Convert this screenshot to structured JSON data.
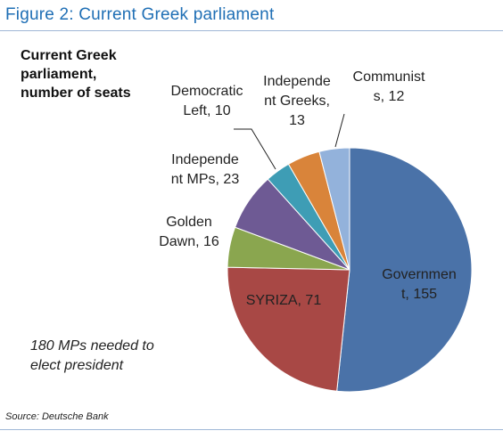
{
  "figure_title": "Figure 2: Current Greek parliament",
  "chart_data": {
    "type": "pie",
    "title": "Current Greek parliament, number of seats",
    "title_lines": [
      "Current Greek",
      "parliament,",
      "number of seats"
    ],
    "slices": [
      {
        "label": "Government, 155",
        "value": 155,
        "color": "#4a72a8",
        "label_lines": [
          "Governmen",
          "t, 155"
        ]
      },
      {
        "label": "SYRIZA, 71",
        "value": 71,
        "color": "#a84845",
        "label_lines": [
          "SYRIZA, 71"
        ]
      },
      {
        "label": "Golden Dawn, 16",
        "value": 16,
        "color": "#8aa64f",
        "label_lines": [
          "Golden",
          "Dawn, 16"
        ]
      },
      {
        "label": "Independent MPs, 23",
        "value": 23,
        "color": "#6e5a94",
        "label_lines": [
          "Independe",
          "nt MPs, 23"
        ]
      },
      {
        "label": "Democratic Left, 10",
        "value": 10,
        "color": "#3e9db5",
        "label_lines": [
          "Democratic",
          "Left, 10"
        ]
      },
      {
        "label": "Independent Greeks, 13",
        "value": 13,
        "color": "#d9843a",
        "label_lines": [
          "Independe",
          "nt Greeks,",
          "13"
        ]
      },
      {
        "label": "Communists, 12",
        "value": 12,
        "color": "#93b2db",
        "label_lines": [
          "Communist",
          "s, 12"
        ]
      }
    ],
    "annotation_lines": [
      "180 MPs needed to",
      "elect president"
    ]
  },
  "source": "Source: Deutsche Bank"
}
